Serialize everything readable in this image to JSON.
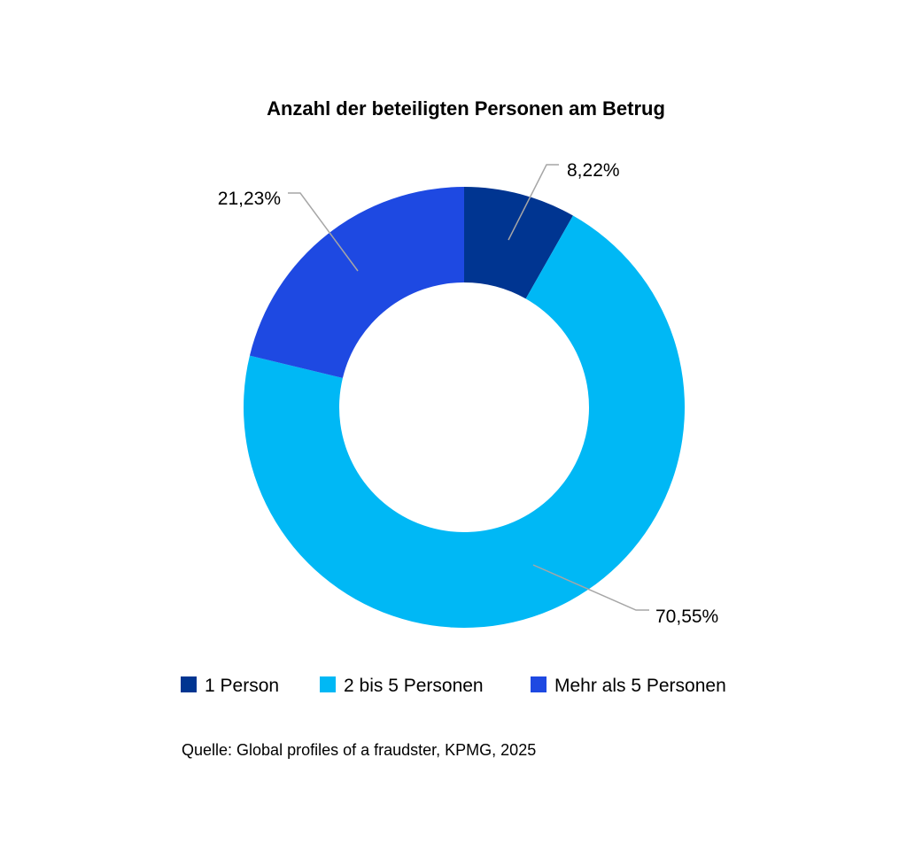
{
  "chart_data": {
    "type": "pie",
    "variant": "donut",
    "title": "Anzahl der beteiligten Personen am Betrug",
    "categories": [
      "1 Person",
      "2 bis 5 Personen",
      "Mehr als 5 Personen"
    ],
    "values": [
      8.22,
      70.55,
      21.23
    ],
    "labels": [
      "8,22%",
      "70,55%",
      "21,23%"
    ],
    "colors": [
      "#003591",
      "#00b8f5",
      "#1e49e2"
    ],
    "legend_position": "bottom",
    "start_angle_deg": 0,
    "direction": "clockwise"
  },
  "source": "Quelle: Global profiles of a fraudster, KPMG, 2025"
}
